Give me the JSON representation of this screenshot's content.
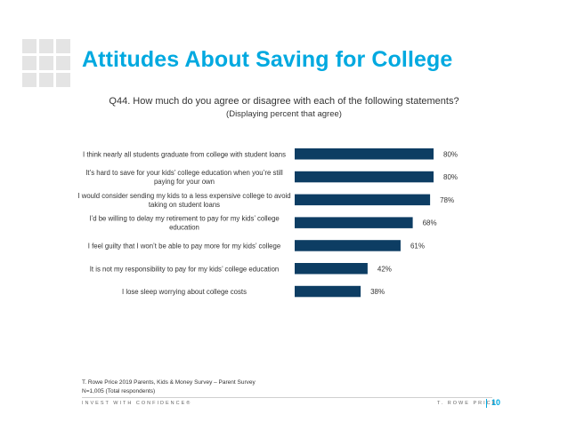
{
  "slide": {
    "title": "Attitudes About Saving for College",
    "question": "Q44. How much do you agree or disagree with each of the following statements?",
    "subtitle": "(Displaying percent that agree)",
    "footnote_source": "T. Rowe Price 2019 Parents, Kids & Money Survey – Parent Survey",
    "footnote_n": "N=1,005 (Total respondents)",
    "tagline": "INVEST WITH CONFIDENCE®",
    "brand": "T. ROWE PRICE",
    "page_number": "10"
  },
  "colors": {
    "accent": "#00a9e0",
    "bar": "#0d3d63",
    "text": "#333333"
  },
  "chart_data": {
    "type": "bar",
    "orientation": "horizontal",
    "title": "",
    "categories": [
      [
        "I think nearly all students graduate from college with student loans"
      ],
      [
        "It’s hard to save for your kids’ college education when you’re still",
        "paying for your own"
      ],
      [
        "I would consider sending my kids to a less expensive college to avoid",
        "taking on student loans"
      ],
      [
        "I’d be willing to delay my retirement to pay for my kids’ college",
        "education"
      ],
      [
        "I feel guilty that I won’t be able to pay more for my kids’ college"
      ],
      [
        "It is not my responsibility to pay for my kids’ college education"
      ],
      [
        "I lose sleep worrying about college costs"
      ]
    ],
    "values": [
      80,
      80,
      78,
      68,
      61,
      42,
      38
    ],
    "value_labels": [
      "80%",
      "80%",
      "78%",
      "68%",
      "61%",
      "42%",
      "38%"
    ],
    "unit": "%",
    "xlim": [
      0,
      100
    ],
    "grid": false,
    "legend": "none"
  }
}
